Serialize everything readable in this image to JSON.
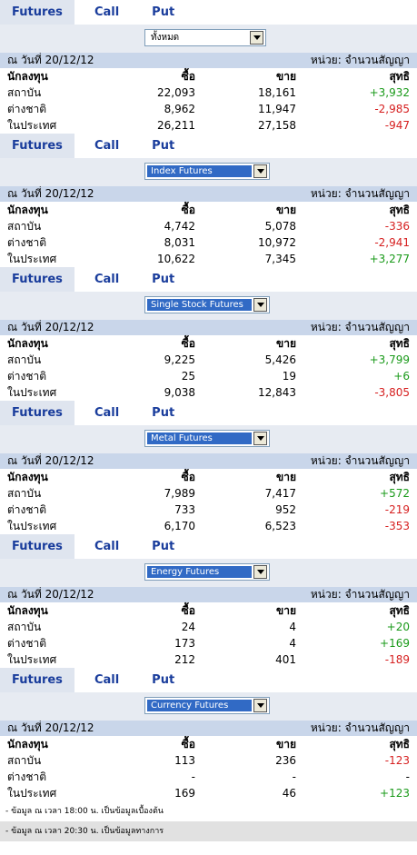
{
  "tabs": {
    "futures": "Futures",
    "call": "Call",
    "put": "Put"
  },
  "labels": {
    "date": "ณ วันที่ 20/12/12",
    "unit": "หน่วย: จำนวนสัญญา",
    "investor": "นักลงทุน",
    "buy": "ซื้อ",
    "sell": "ขาย",
    "net": "สุทธิ"
  },
  "sections": [
    {
      "select": "ทั้งหมด",
      "rows": [
        {
          "name": "สถาบัน",
          "buy": "22,093",
          "sell": "18,161",
          "net": "+3,932"
        },
        {
          "name": "ต่างชาติ",
          "buy": "8,962",
          "sell": "11,947",
          "net": "-2,985"
        },
        {
          "name": "ในประเทศ",
          "buy": "26,211",
          "sell": "27,158",
          "net": "-947"
        }
      ]
    },
    {
      "select": "Index Futures",
      "rows": [
        {
          "name": "สถาบัน",
          "buy": "4,742",
          "sell": "5,078",
          "net": "-336"
        },
        {
          "name": "ต่างชาติ",
          "buy": "8,031",
          "sell": "10,972",
          "net": "-2,941"
        },
        {
          "name": "ในประเทศ",
          "buy": "10,622",
          "sell": "7,345",
          "net": "+3,277"
        }
      ]
    },
    {
      "select": "Single Stock Futures",
      "rows": [
        {
          "name": "สถาบัน",
          "buy": "9,225",
          "sell": "5,426",
          "net": "+3,799"
        },
        {
          "name": "ต่างชาติ",
          "buy": "25",
          "sell": "19",
          "net": "+6"
        },
        {
          "name": "ในประเทศ",
          "buy": "9,038",
          "sell": "12,843",
          "net": "-3,805"
        }
      ]
    },
    {
      "select": "Metal Futures",
      "rows": [
        {
          "name": "สถาบัน",
          "buy": "7,989",
          "sell": "7,417",
          "net": "+572"
        },
        {
          "name": "ต่างชาติ",
          "buy": "733",
          "sell": "952",
          "net": "-219"
        },
        {
          "name": "ในประเทศ",
          "buy": "6,170",
          "sell": "6,523",
          "net": "-353"
        }
      ]
    },
    {
      "select": "Energy Futures",
      "rows": [
        {
          "name": "สถาบัน",
          "buy": "24",
          "sell": "4",
          "net": "+20"
        },
        {
          "name": "ต่างชาติ",
          "buy": "173",
          "sell": "4",
          "net": "+169"
        },
        {
          "name": "ในประเทศ",
          "buy": "212",
          "sell": "401",
          "net": "-189"
        }
      ]
    },
    {
      "select": "Currency Futures",
      "rows": [
        {
          "name": "สถาบัน",
          "buy": "113",
          "sell": "236",
          "net": "-123"
        },
        {
          "name": "ต่างชาติ",
          "buy": "-",
          "sell": "-",
          "net": "-"
        },
        {
          "name": "ในประเทศ",
          "buy": "169",
          "sell": "46",
          "net": "+123"
        }
      ]
    }
  ],
  "notes": [
    "- ข้อมูล ณ เวลา 18:00 น. เป็นข้อมูลเบื้องต้น",
    "- ข้อมูล ณ เวลา 20:30 น. เป็นข้อมูลทางการ"
  ],
  "colors": {
    "positive": "#1a9a1a",
    "negative": "#d62020",
    "tab": "#1a3d9c",
    "date_bar": "#c9d6ea"
  }
}
